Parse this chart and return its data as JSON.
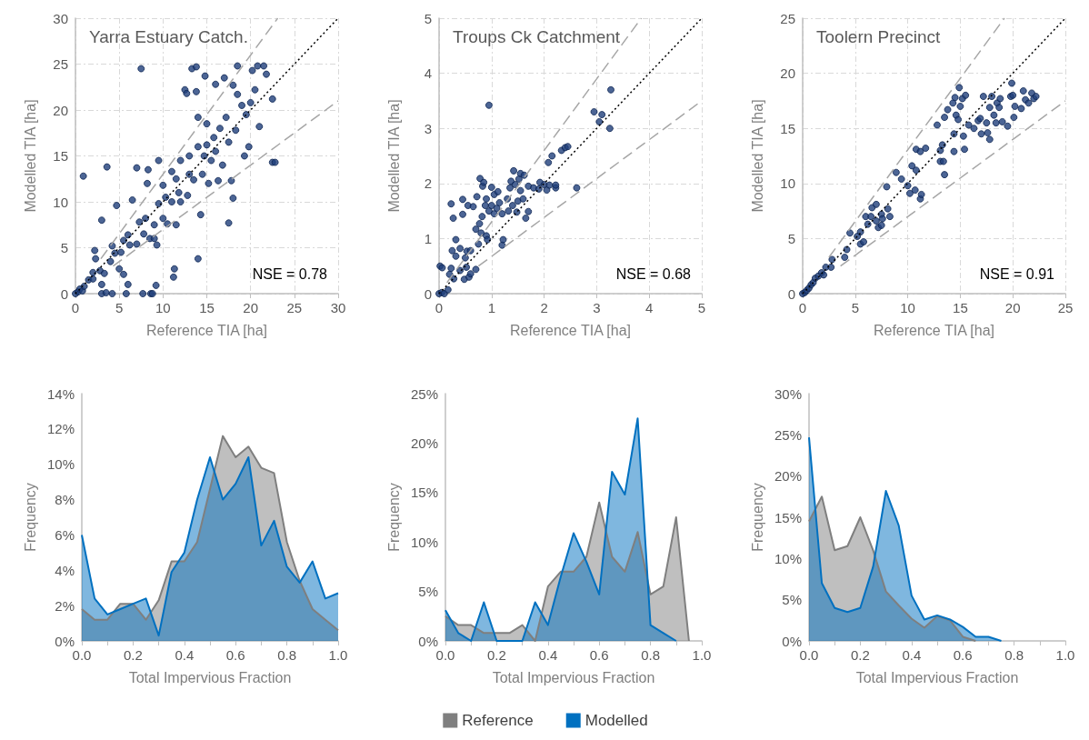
{
  "chart_data": [
    {
      "type": "scatter",
      "title": "Yarra Estuary Catch.",
      "xlabel": "Reference TIA [ha]",
      "ylabel": "Modelled TIA [ha]",
      "annotations": [
        "NSE = 0.78"
      ],
      "xlim": [
        0,
        30
      ],
      "ylim": [
        0,
        30
      ],
      "xticks": [
        0,
        5,
        10,
        15,
        20,
        25,
        30
      ],
      "yticks": [
        0,
        5,
        10,
        15,
        20,
        25,
        30
      ],
      "grid": true,
      "marker": "circle",
      "series": [
        {
          "color": "#1f3f7a",
          "x": [
            0,
            0.3,
            0.5,
            0.8,
            1,
            0.9,
            1.5,
            2,
            2.2,
            2.3,
            2,
            2.8,
            3,
            3,
            3,
            3.3,
            3.5,
            3.6,
            4,
            4.2,
            4.2,
            4.7,
            4.5,
            5,
            5.2,
            5.5,
            5.5,
            5.8,
            6,
            6,
            6.5,
            6.2,
            7,
            7,
            7.3,
            7.5,
            7.7,
            7.8,
            8,
            8.2,
            8.3,
            8.5,
            8.6,
            8.8,
            9,
            9,
            9.3,
            9.2,
            9.5,
            9.5,
            10,
            10,
            10.3,
            10.5,
            11,
            11,
            11.2,
            11.3,
            11.5,
            11.5,
            11.8,
            12,
            12,
            12.5,
            12.7,
            12.8,
            13,
            13,
            13.3,
            13.5,
            13.8,
            13.8,
            14,
            14,
            14,
            14.3,
            14.5,
            14.7,
            14.8,
            15,
            15,
            15.2,
            15.5,
            15.8,
            16,
            16,
            16.3,
            16.5,
            16.8,
            17,
            17.2,
            17.5,
            17.5,
            17.8,
            18,
            18,
            18.3,
            18.5,
            18.5,
            19,
            19.3,
            19.5,
            19.8,
            20,
            20.2,
            20.5,
            20.8,
            21,
            21.5,
            21.8,
            22.5,
            22.5,
            22.8
          ],
          "values": [
            0,
            0.2,
            0.5,
            0.3,
            0.8,
            12.8,
            1.5,
            2.3,
            4.7,
            3.8,
            1.6,
            2.5,
            1,
            0,
            8,
            2.2,
            0.1,
            13.8,
            3.5,
            0,
            5.2,
            9.6,
            4.4,
            2.7,
            4.5,
            5.8,
            2.1,
            0,
            1,
            6.4,
            10.2,
            5.3,
            13.7,
            5.4,
            7.8,
            24.5,
            0,
            6.5,
            8.2,
            12,
            13.5,
            6,
            0,
            0,
            7.5,
            6,
            5.3,
            0.9,
            14.5,
            9.8,
            11.8,
            8.2,
            10.5,
            7.6,
            13.3,
            10,
            1.8,
            2.7,
            7.5,
            12.5,
            11,
            14.5,
            10,
            22.2,
            21.8,
            10.7,
            13,
            15,
            24.5,
            12.4,
            24.7,
            22,
            19.2,
            3.8,
            16,
            8.6,
            13,
            15,
            23.7,
            18.5,
            16.2,
            12,
            14.5,
            17,
            22.8,
            15.5,
            12.3,
            18,
            14,
            23.5,
            19.2,
            7.7,
            16.5,
            12.3,
            22.7,
            10.4,
            17.8,
            24.8,
            21.7,
            20.5,
            15,
            19.5,
            16,
            20.8,
            24.3,
            22.2,
            24.8,
            18.2,
            24.8,
            23.9,
            21.2,
            14.3,
            14.3
          ]
        },
        {
          "type": "line",
          "color": "#000000",
          "line_style": "dotted",
          "marker": "none",
          "x": [
            0,
            30
          ],
          "values": [
            0,
            30
          ]
        },
        {
          "type": "line",
          "color": "#a6a6a6",
          "line_style": "dashed",
          "marker": "none",
          "x": [
            2.9,
            23.1
          ],
          "values": [
            3.8,
            30
          ]
        },
        {
          "type": "line",
          "color": "#a6a6a6",
          "line_style": "dashed",
          "marker": "none",
          "x": [
            4.3,
            30
          ],
          "values": [
            3,
            21
          ]
        }
      ]
    },
    {
      "type": "scatter",
      "title": "Troups Ck Catchment",
      "xlabel": "Reference TIA [ha]",
      "ylabel": "Modelled TIA [ha]",
      "annotations": [
        "NSE = 0.68"
      ],
      "xlim": [
        0,
        5
      ],
      "ylim": [
        0,
        5
      ],
      "xticks": [
        0,
        1,
        2,
        3,
        4,
        5
      ],
      "yticks": [
        0,
        1,
        2,
        3,
        4,
        5
      ],
      "grid": true,
      "marker": "circle",
      "series": [
        {
          "color": "#1f3f7a",
          "x": [
            0,
            0.05,
            0.1,
            0.02,
            0.06,
            0.17,
            0.2,
            0.23,
            0.23,
            0.25,
            0.27,
            0.28,
            0.32,
            0.32,
            0.4,
            0.4,
            0.45,
            0.45,
            0.48,
            0.5,
            0.52,
            0.53,
            0.55,
            0.57,
            0.6,
            0.6,
            0.65,
            0.7,
            0.7,
            0.72,
            0.75,
            0.77,
            0.78,
            0.8,
            0.82,
            0.83,
            0.85,
            0.88,
            0.9,
            0.9,
            0.92,
            0.95,
            0.95,
            1,
            1,
            1.05,
            1.05,
            1.1,
            1.12,
            1.15,
            1.2,
            1.2,
            1.22,
            1.3,
            1.32,
            1.35,
            1.37,
            1.4,
            1.42,
            1.45,
            1.48,
            1.5,
            1.52,
            1.55,
            1.55,
            1.6,
            1.62,
            1.65,
            1.7,
            1.7,
            1.8,
            1.9,
            1.92,
            2,
            2.05,
            2.08,
            2.1,
            2.15,
            2.22,
            2.22,
            2.33,
            2.4,
            2.45,
            2.62,
            2.95,
            3.05,
            3.1,
            3.25,
            3.27
          ],
          "values": [
            0,
            0.02,
            0,
            0.5,
            0.47,
            0.07,
            0.35,
            0.46,
            1.63,
            0.78,
            1.37,
            0.27,
            0.68,
            0.98,
            0.42,
            0.82,
            1.44,
            1.71,
            0.26,
            0.65,
            0.48,
            0.77,
            1.6,
            0.3,
            0.36,
            0.78,
            1.58,
            0.44,
            1.17,
            1.76,
            0.9,
            1.27,
            2.09,
            1.1,
            1.4,
            1.95,
            2.02,
            1.6,
            1.72,
            1.05,
            0.98,
            3.42,
            1.5,
            1.93,
            1.6,
            1.8,
            1.45,
            1.55,
            1.85,
            1.65,
            1.45,
            0.88,
            0.98,
            1.72,
            1.5,
            1.92,
            2.04,
            1.6,
            2.23,
            1.98,
            1.48,
            1.68,
            2.08,
            1.87,
            2.18,
            1.72,
            2.15,
            1.37,
            1.49,
            1.95,
            1.92,
            1.9,
            2.02,
            1.98,
            1.88,
            2.38,
            1.97,
            2.5,
            1.92,
            1.97,
            2.6,
            2.65,
            2.67,
            1.92,
            3.3,
            3.12,
            3.25,
            3,
            3.7
          ]
        },
        {
          "type": "line",
          "color": "#000000",
          "line_style": "dotted",
          "marker": "none",
          "x": [
            0,
            5
          ],
          "values": [
            0,
            5
          ]
        },
        {
          "type": "line",
          "color": "#a6a6a6",
          "line_style": "dashed",
          "marker": "none",
          "x": [
            0.15,
            3.85
          ],
          "values": [
            0.2,
            5
          ]
        },
        {
          "type": "line",
          "color": "#a6a6a6",
          "line_style": "dashed",
          "marker": "none",
          "x": [
            0.75,
            5
          ],
          "values": [
            0.5,
            3.5
          ]
        }
      ]
    },
    {
      "type": "scatter",
      "title": "Toolern Precinct",
      "xlabel": "Reference TIA [ha]",
      "ylabel": "Modelled TIA [ha]",
      "annotations": [
        "NSE = 0.91"
      ],
      "xlim": [
        0,
        25
      ],
      "ylim": [
        0,
        25
      ],
      "xticks": [
        0,
        5,
        10,
        15,
        20,
        25
      ],
      "yticks": [
        0,
        5,
        10,
        15,
        20,
        25
      ],
      "grid": true,
      "marker": "circle",
      "series": [
        {
          "color": "#1f3f7a",
          "x": [
            0,
            0.2,
            0.4,
            0.6,
            0.8,
            1,
            1.2,
            1.5,
            1.8,
            2,
            2.2,
            2.7,
            2.8,
            4,
            4.2,
            4.5,
            5.2,
            5.5,
            5.5,
            5.8,
            6,
            6.2,
            6.5,
            6.6,
            7,
            7,
            7.2,
            7.5,
            7.5,
            7.6,
            8,
            8.1,
            8.3,
            8.9,
            9.4,
            10,
            10.2,
            10.4,
            10.7,
            10.8,
            10.8,
            11.2,
            11.2,
            11.3,
            11.7,
            12.8,
            13.1,
            13.1,
            13.3,
            13.4,
            13.5,
            13.5,
            13.8,
            14.3,
            14.4,
            14.4,
            14.5,
            14.6,
            14.8,
            14.9,
            15,
            15.2,
            15.3,
            15.4,
            15.5,
            15.8,
            16.3,
            16.7,
            16.9,
            17,
            17.2,
            17.5,
            17.6,
            17.8,
            17.8,
            18,
            18.2,
            18.4,
            18.5,
            18.7,
            18.8,
            19,
            19.5,
            19.8,
            19.9,
            20,
            20.1,
            20.2,
            20.8,
            21,
            21.2,
            21.5,
            21.8,
            22,
            22.2
          ],
          "values": [
            0,
            0.1,
            0.3,
            0.5,
            0.8,
            1,
            1.4,
            1.6,
            1.9,
            1.7,
            2.4,
            2.4,
            3.1,
            3.3,
            4,
            5.5,
            5.2,
            4.5,
            5.6,
            4.7,
            7,
            6.3,
            7,
            7.8,
            8.1,
            6.6,
            6,
            6.2,
            7.2,
            6.8,
            9.7,
            7.7,
            7,
            11,
            10.4,
            9.8,
            9.1,
            11.6,
            9.4,
            13.1,
            11.2,
            12.9,
            8.6,
            9,
            13.2,
            15.3,
            13,
            12,
            13.5,
            12,
            10.8,
            16,
            16.7,
            17.3,
            14.5,
            12.9,
            17.8,
            16.2,
            15.8,
            18.7,
            17,
            17.7,
            14.3,
            13.1,
            18,
            15.3,
            15,
            15.7,
            15.9,
            14.5,
            17.9,
            15.5,
            14.6,
            16.9,
            14,
            17.9,
            16.2,
            15.5,
            17.3,
            16.9,
            17.7,
            15.6,
            15.2,
            17.9,
            19.1,
            18,
            16,
            17,
            16.8,
            18.4,
            17.6,
            17.3,
            18.2,
            17.7,
            17.9
          ]
        },
        {
          "type": "line",
          "color": "#000000",
          "line_style": "dotted",
          "marker": "none",
          "x": [
            0,
            25
          ],
          "values": [
            0,
            25
          ]
        },
        {
          "type": "line",
          "color": "#a6a6a6",
          "line_style": "dashed",
          "marker": "none",
          "x": [
            2.5,
            19.2
          ],
          "values": [
            3.3,
            25
          ]
        },
        {
          "type": "line",
          "color": "#a6a6a6",
          "line_style": "dashed",
          "marker": "none",
          "x": [
            3.6,
            25
          ],
          "values": [
            2.5,
            17.5
          ]
        }
      ]
    },
    {
      "type": "area",
      "xlabel": "Total Impervious Fraction",
      "ylabel": "Frequency",
      "xlim": [
        0,
        1
      ],
      "ylim": [
        0,
        14
      ],
      "xticks": [
        {
          "value": 0,
          "label": "0.0"
        },
        {
          "value": 0.1,
          "label": null
        },
        {
          "value": 0.2,
          "label": "0.2"
        },
        {
          "value": 0.3,
          "label": null
        },
        {
          "value": 0.4,
          "label": "0.4"
        },
        {
          "value": 0.5,
          "label": null
        },
        {
          "value": 0.6,
          "label": "0.6"
        },
        {
          "value": 0.7,
          "label": null
        },
        {
          "value": 0.8,
          "label": "0.8"
        },
        {
          "value": 0.9,
          "label": null
        },
        {
          "value": 1,
          "label": "1.0"
        }
      ],
      "yticks": [
        {
          "value": 0,
          "label": "0%"
        },
        {
          "value": 2,
          "label": "2%"
        },
        {
          "value": 4,
          "label": "4%"
        },
        {
          "value": 6,
          "label": "6%"
        },
        {
          "value": 8,
          "label": "8%"
        },
        {
          "value": 10,
          "label": "10%"
        },
        {
          "value": 12,
          "label": "12%"
        },
        {
          "value": 14,
          "label": "14%"
        }
      ],
      "x": [
        0,
        0.05,
        0.1,
        0.15,
        0.2,
        0.25,
        0.3,
        0.35,
        0.4,
        0.45,
        0.5,
        0.55,
        0.6,
        0.65,
        0.7,
        0.75,
        0.8,
        0.85,
        0.9,
        0.95,
        1
      ],
      "series": [
        {
          "color": "#7f7f7f",
          "values": [
            1.8,
            1.2,
            1.2,
            2.1,
            2.1,
            1.2,
            2.3,
            4.5,
            4.5,
            5.6,
            8.6,
            11.6,
            10.4,
            11,
            9.8,
            9.5,
            5.6,
            3.4,
            1.8,
            1.2,
            0.6
          ]
        },
        {
          "color": "#0070c0",
          "values": [
            6,
            2.4,
            1.5,
            1.8,
            2.1,
            2.4,
            0.3,
            3.9,
            5,
            8,
            10.4,
            8,
            8.9,
            10.4,
            5.4,
            6.8,
            4.2,
            3.3,
            4.5,
            2.4,
            2.7
          ]
        }
      ]
    },
    {
      "type": "area",
      "xlabel": "Total Impervious Fraction",
      "ylabel": "Frequency",
      "xlim": [
        0,
        1
      ],
      "ylim": [
        0,
        25
      ],
      "legend": "bottom",
      "xticks": [
        {
          "value": 0,
          "label": "0.0"
        },
        {
          "value": 0.1,
          "label": null
        },
        {
          "value": 0.2,
          "label": "0.2"
        },
        {
          "value": 0.3,
          "label": null
        },
        {
          "value": 0.4,
          "label": "0.4"
        },
        {
          "value": 0.5,
          "label": null
        },
        {
          "value": 0.6,
          "label": "0.6"
        },
        {
          "value": 0.7,
          "label": null
        },
        {
          "value": 0.8,
          "label": "0.8"
        },
        {
          "value": 0.9,
          "label": null
        },
        {
          "value": 1,
          "label": "1.0"
        }
      ],
      "yticks": [
        {
          "value": 0,
          "label": "0%"
        },
        {
          "value": 5,
          "label": "5%"
        },
        {
          "value": 10,
          "label": "10%"
        },
        {
          "value": 15,
          "label": "15%"
        },
        {
          "value": 20,
          "label": "20%"
        },
        {
          "value": 25,
          "label": "25%"
        }
      ],
      "series": [
        {
          "name": "Reference",
          "color": "#7f7f7f",
          "x": [
            0,
            0.05,
            0.1,
            0.15,
            0.2,
            0.25,
            0.3,
            0.35,
            0.4,
            0.45,
            0.5,
            0.55,
            0.6,
            0.65,
            0.7,
            0.75,
            0.8,
            0.85,
            0.9,
            0.95
          ],
          "values": [
            2.5,
            1.6,
            1.6,
            0.8,
            0.8,
            0.8,
            1.6,
            0,
            5.5,
            7,
            7,
            8.5,
            14,
            8.5,
            7,
            11,
            4.7,
            5.5,
            12.5,
            0
          ]
        },
        {
          "name": "Modelled",
          "color": "#0070c0",
          "x": [
            0,
            0.05,
            0.1,
            0.15,
            0.2,
            0.25,
            0.3,
            0.35,
            0.4,
            0.45,
            0.5,
            0.55,
            0.6,
            0.65,
            0.7,
            0.75,
            0.8,
            0.85,
            0.9
          ],
          "values": [
            3.1,
            0.8,
            0,
            3.9,
            0,
            0,
            0,
            3.9,
            1.6,
            6.5,
            10.9,
            8,
            4.7,
            17.1,
            14.8,
            22.5,
            1.6,
            0.8,
            0
          ]
        }
      ]
    },
    {
      "type": "area",
      "xlabel": "Total Impervious Fraction",
      "ylabel": "Frequency",
      "xlim": [
        0,
        1
      ],
      "ylim": [
        0,
        30
      ],
      "xticks": [
        {
          "value": 0,
          "label": "0.0"
        },
        {
          "value": 0.1,
          "label": null
        },
        {
          "value": 0.2,
          "label": "0.2"
        },
        {
          "value": 0.3,
          "label": null
        },
        {
          "value": 0.4,
          "label": "0.4"
        },
        {
          "value": 0.5,
          "label": null
        },
        {
          "value": 0.6,
          "label": "0.6"
        },
        {
          "value": 0.7,
          "label": null
        },
        {
          "value": 0.8,
          "label": "0.8"
        },
        {
          "value": 0.9,
          "label": null
        },
        {
          "value": 1,
          "label": "1.0"
        }
      ],
      "yticks": [
        {
          "value": 0,
          "label": "0%"
        },
        {
          "value": 5,
          "label": "5%"
        },
        {
          "value": 10,
          "label": "10%"
        },
        {
          "value": 15,
          "label": "15%"
        },
        {
          "value": 20,
          "label": "20%"
        },
        {
          "value": 25,
          "label": "25%"
        },
        {
          "value": 30,
          "label": "30%"
        }
      ],
      "series": [
        {
          "color": "#7f7f7f",
          "x": [
            0,
            0.05,
            0.1,
            0.15,
            0.2,
            0.25,
            0.3,
            0.35,
            0.4,
            0.45,
            0.5,
            0.55,
            0.6,
            0.65
          ],
          "values": [
            14.5,
            17.5,
            11,
            11.5,
            15,
            11,
            6,
            4.3,
            2.7,
            1.6,
            3,
            2.5,
            0.5,
            0
          ]
        },
        {
          "color": "#0070c0",
          "x": [
            0,
            0.05,
            0.1,
            0.15,
            0.2,
            0.25,
            0.3,
            0.35,
            0.4,
            0.45,
            0.5,
            0.55,
            0.6,
            0.65,
            0.7,
            0.75
          ],
          "values": [
            24.7,
            7,
            4,
            3.5,
            4,
            9,
            18.2,
            14,
            5.5,
            2.6,
            3.1,
            2.6,
            1.7,
            0.5,
            0.5,
            0
          ]
        }
      ]
    }
  ]
}
